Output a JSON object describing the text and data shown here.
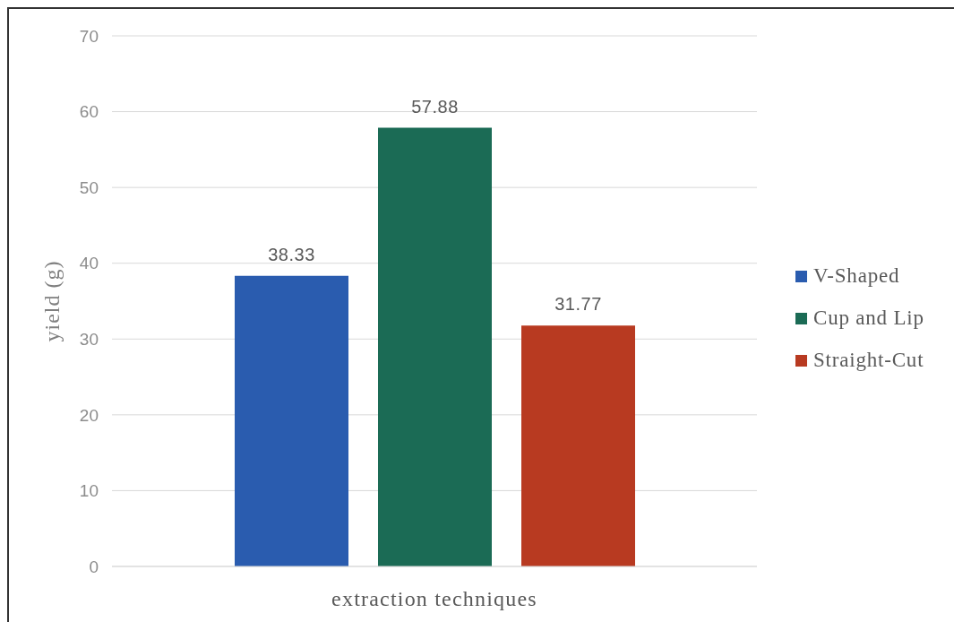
{
  "chart_data": {
    "type": "bar",
    "xlabel": "extraction techniques",
    "ylabel": "yield (g)",
    "categories": [
      null
    ],
    "series": [
      {
        "name": "V-Shaped",
        "color": "#2a5caf",
        "values": [
          38.33
        ]
      },
      {
        "name": "Cup and Lip",
        "color": "#1b6b55",
        "values": [
          57.88
        ]
      },
      {
        "name": "Straight-Cut",
        "color": "#b83a21",
        "values": [
          31.77
        ]
      }
    ],
    "ylim": [
      0,
      70
    ],
    "yticks": [
      0,
      10,
      20,
      30,
      40,
      50,
      60,
      70
    ],
    "grid": "y",
    "legend": "right",
    "data_labels": true
  }
}
